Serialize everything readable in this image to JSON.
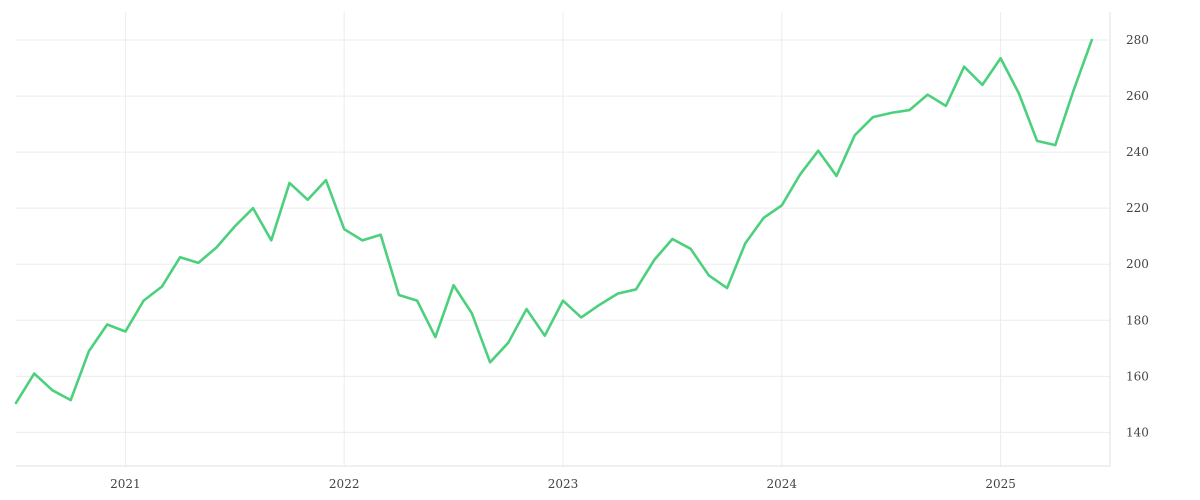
{
  "colors": {
    "series": "#4cd07d"
  },
  "chart_data": {
    "type": "line",
    "title": "",
    "xlabel": "",
    "ylabel": "",
    "grid": true,
    "y_axis_side": "right",
    "xlim": [
      "2020-07",
      "2025-07"
    ],
    "ylim": [
      128,
      290
    ],
    "x_ticks": [
      {
        "date": "2021-01",
        "label": "2021"
      },
      {
        "date": "2022-01",
        "label": "2022"
      },
      {
        "date": "2023-01",
        "label": "2023"
      },
      {
        "date": "2024-01",
        "label": "2024"
      },
      {
        "date": "2025-01",
        "label": "2025"
      }
    ],
    "y_ticks": [
      140,
      160,
      180,
      200,
      220,
      240,
      260,
      280
    ],
    "series": [
      {
        "x": [
          "2020-07",
          "2020-08",
          "2020-09",
          "2020-10",
          "2020-11",
          "2020-12",
          "2021-01",
          "2021-02",
          "2021-03",
          "2021-04",
          "2021-05",
          "2021-06",
          "2021-07",
          "2021-08",
          "2021-09",
          "2021-10",
          "2021-11",
          "2021-12",
          "2022-01",
          "2022-02",
          "2022-03",
          "2022-04",
          "2022-05",
          "2022-06",
          "2022-07",
          "2022-08",
          "2022-09",
          "2022-10",
          "2022-11",
          "2022-12",
          "2023-01",
          "2023-02",
          "2023-03",
          "2023-04",
          "2023-05",
          "2023-06",
          "2023-07",
          "2023-08",
          "2023-09",
          "2023-10",
          "2023-11",
          "2023-12",
          "2024-01",
          "2024-02",
          "2024-03",
          "2024-04",
          "2024-05",
          "2024-06",
          "2024-07",
          "2024-08",
          "2024-09",
          "2024-10",
          "2024-11",
          "2024-12",
          "2025-01",
          "2025-02",
          "2025-03",
          "2025-04",
          "2025-05",
          "2025-06"
        ],
        "values": [
          150.5,
          161,
          155,
          151.5,
          169,
          178.5,
          176,
          187,
          192,
          202.5,
          200.5,
          206,
          213.5,
          220,
          208.5,
          229,
          223,
          230,
          212.5,
          208.5,
          210.5,
          189,
          187,
          174,
          192.5,
          182.5,
          165,
          172,
          184,
          174.5,
          187,
          181,
          185.5,
          189.5,
          191,
          201.5,
          209,
          205.5,
          196,
          191.5,
          207.5,
          216.5,
          221,
          232,
          240.5,
          231.5,
          246,
          252.5,
          254,
          255,
          260.5,
          256.5,
          270.5,
          264,
          273.5,
          261,
          244,
          242.5,
          262,
          280
        ]
      }
    ]
  }
}
